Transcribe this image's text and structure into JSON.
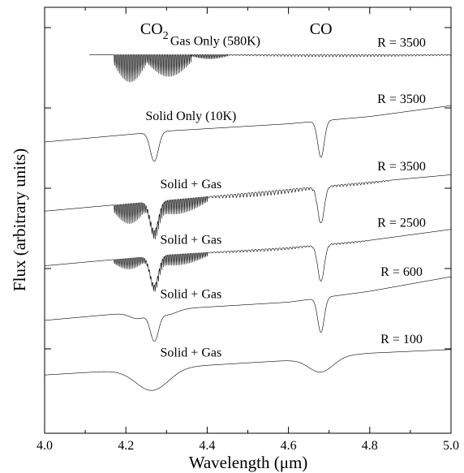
{
  "chart_data": {
    "type": "line",
    "xlabel": "Wavelength (μm)",
    "ylabel": "Flux (arbitrary units)",
    "xlim": [
      4.0,
      5.0
    ],
    "x_ticks": [
      "4.0",
      "4.2",
      "4.4",
      "4.6",
      "4.8",
      "5.0"
    ],
    "x_tick_values": [
      4.0,
      4.2,
      4.4,
      4.6,
      4.8,
      5.0
    ],
    "y_ticks_unlabeled": 5,
    "grid": false,
    "molecule_labels": [
      {
        "text": "CO",
        "subscript": "2",
        "x": 4.27
      },
      {
        "text": "CO",
        "subscript": "",
        "x": 4.68
      }
    ],
    "series": [
      {
        "label": "Gas Only (580K)",
        "resolution": "R = 3500",
        "x_start": 4.11,
        "baseline": [
          [
            4.11,
            8.9
          ],
          [
            5.0,
            8.9
          ]
        ],
        "bands": [
          {
            "type": "lines",
            "x0": 4.17,
            "x1": 4.25,
            "depth": 0.75,
            "spacing": 0.004
          },
          {
            "type": "lines",
            "x0": 4.25,
            "x1": 4.36,
            "depth": 0.6,
            "spacing": 0.004
          },
          {
            "type": "lines",
            "x0": 4.36,
            "x1": 4.45,
            "depth": 0.12,
            "spacing": 0.004
          },
          {
            "type": "lines",
            "x0": 4.45,
            "x1": 5.0,
            "depth": 0.06,
            "spacing": 0.0085
          }
        ]
      },
      {
        "label": "Solid Only (10K)",
        "resolution": "R = 3500",
        "x_start": 4.0,
        "baseline": [
          [
            4.0,
            6.5
          ],
          [
            4.3,
            6.8
          ],
          [
            4.6,
            7.0
          ],
          [
            4.8,
            7.2
          ],
          [
            5.0,
            7.5
          ]
        ],
        "bands": [
          {
            "type": "gauss",
            "x0": 4.27,
            "width": 0.01,
            "depth": 0.8
          },
          {
            "type": "gauss",
            "x0": 4.68,
            "width": 0.008,
            "depth": 1.0
          }
        ]
      },
      {
        "label": "Solid + Gas",
        "resolution": "R = 3500",
        "x_start": 4.0,
        "baseline": [
          [
            4.0,
            4.6
          ],
          [
            4.3,
            4.9
          ],
          [
            4.6,
            5.2
          ],
          [
            4.8,
            5.4
          ],
          [
            5.0,
            5.6
          ]
        ],
        "bands": [
          {
            "type": "gauss",
            "x0": 4.27,
            "width": 0.01,
            "depth": 0.8
          },
          {
            "type": "gauss",
            "x0": 4.68,
            "width": 0.008,
            "depth": 1.0
          },
          {
            "type": "lines",
            "x0": 4.17,
            "x1": 4.25,
            "depth": 0.55,
            "spacing": 0.004
          },
          {
            "type": "lines",
            "x0": 4.25,
            "x1": 4.4,
            "depth": 0.4,
            "spacing": 0.004
          },
          {
            "type": "lines",
            "x0": 4.4,
            "x1": 4.68,
            "depth": 0.12,
            "spacing": 0.0085
          },
          {
            "type": "lines",
            "x0": 4.68,
            "x1": 4.85,
            "depth": 0.06,
            "spacing": 0.0085
          }
        ]
      },
      {
        "label": "Solid + Gas",
        "resolution": "R = 2500",
        "x_start": 4.0,
        "baseline": [
          [
            4.0,
            3.1
          ],
          [
            4.3,
            3.4
          ],
          [
            4.6,
            3.6
          ],
          [
            4.8,
            3.8
          ],
          [
            5.0,
            4.1
          ]
        ],
        "bands": [
          {
            "type": "gauss",
            "x0": 4.27,
            "width": 0.01,
            "depth": 0.8
          },
          {
            "type": "gauss",
            "x0": 4.68,
            "width": 0.008,
            "depth": 1.0
          },
          {
            "type": "lines",
            "x0": 4.17,
            "x1": 4.25,
            "depth": 0.3,
            "spacing": 0.004
          },
          {
            "type": "lines",
            "x0": 4.25,
            "x1": 4.4,
            "depth": 0.3,
            "spacing": 0.004
          },
          {
            "type": "lines",
            "x0": 4.4,
            "x1": 4.68,
            "depth": 0.06,
            "spacing": 0.0085
          },
          {
            "type": "lines",
            "x0": 4.68,
            "x1": 4.8,
            "depth": 0.04,
            "spacing": 0.0085
          }
        ]
      },
      {
        "label": "Solid + Gas",
        "resolution": "R = 600",
        "x_start": 4.0,
        "baseline": [
          [
            4.0,
            1.6
          ],
          [
            4.3,
            1.9
          ],
          [
            4.6,
            2.1
          ],
          [
            4.8,
            2.4
          ],
          [
            5.0,
            2.8
          ]
        ],
        "bands": [
          {
            "type": "gauss",
            "x0": 4.27,
            "width": 0.01,
            "depth": 0.75
          },
          {
            "type": "gauss",
            "x0": 4.68,
            "width": 0.008,
            "depth": 0.95
          },
          {
            "type": "gauss",
            "x0": 4.23,
            "width": 0.02,
            "depth": 0.18
          },
          {
            "type": "gauss",
            "x0": 4.3,
            "width": 0.025,
            "depth": 0.15
          }
        ]
      },
      {
        "label": "Solid + Gas",
        "resolution": "R = 100",
        "x_start": 4.0,
        "baseline": [
          [
            4.0,
            0.1
          ],
          [
            4.3,
            0.3
          ],
          [
            4.6,
            0.5
          ],
          [
            4.8,
            0.7
          ],
          [
            5.0,
            0.8
          ]
        ],
        "bands": [
          {
            "type": "gauss",
            "x0": 4.265,
            "width": 0.04,
            "depth": 0.6
          },
          {
            "type": "gauss",
            "x0": 4.68,
            "width": 0.03,
            "depth": 0.4
          }
        ]
      }
    ],
    "ylim": [
      -1.5,
      10.2
    ]
  }
}
